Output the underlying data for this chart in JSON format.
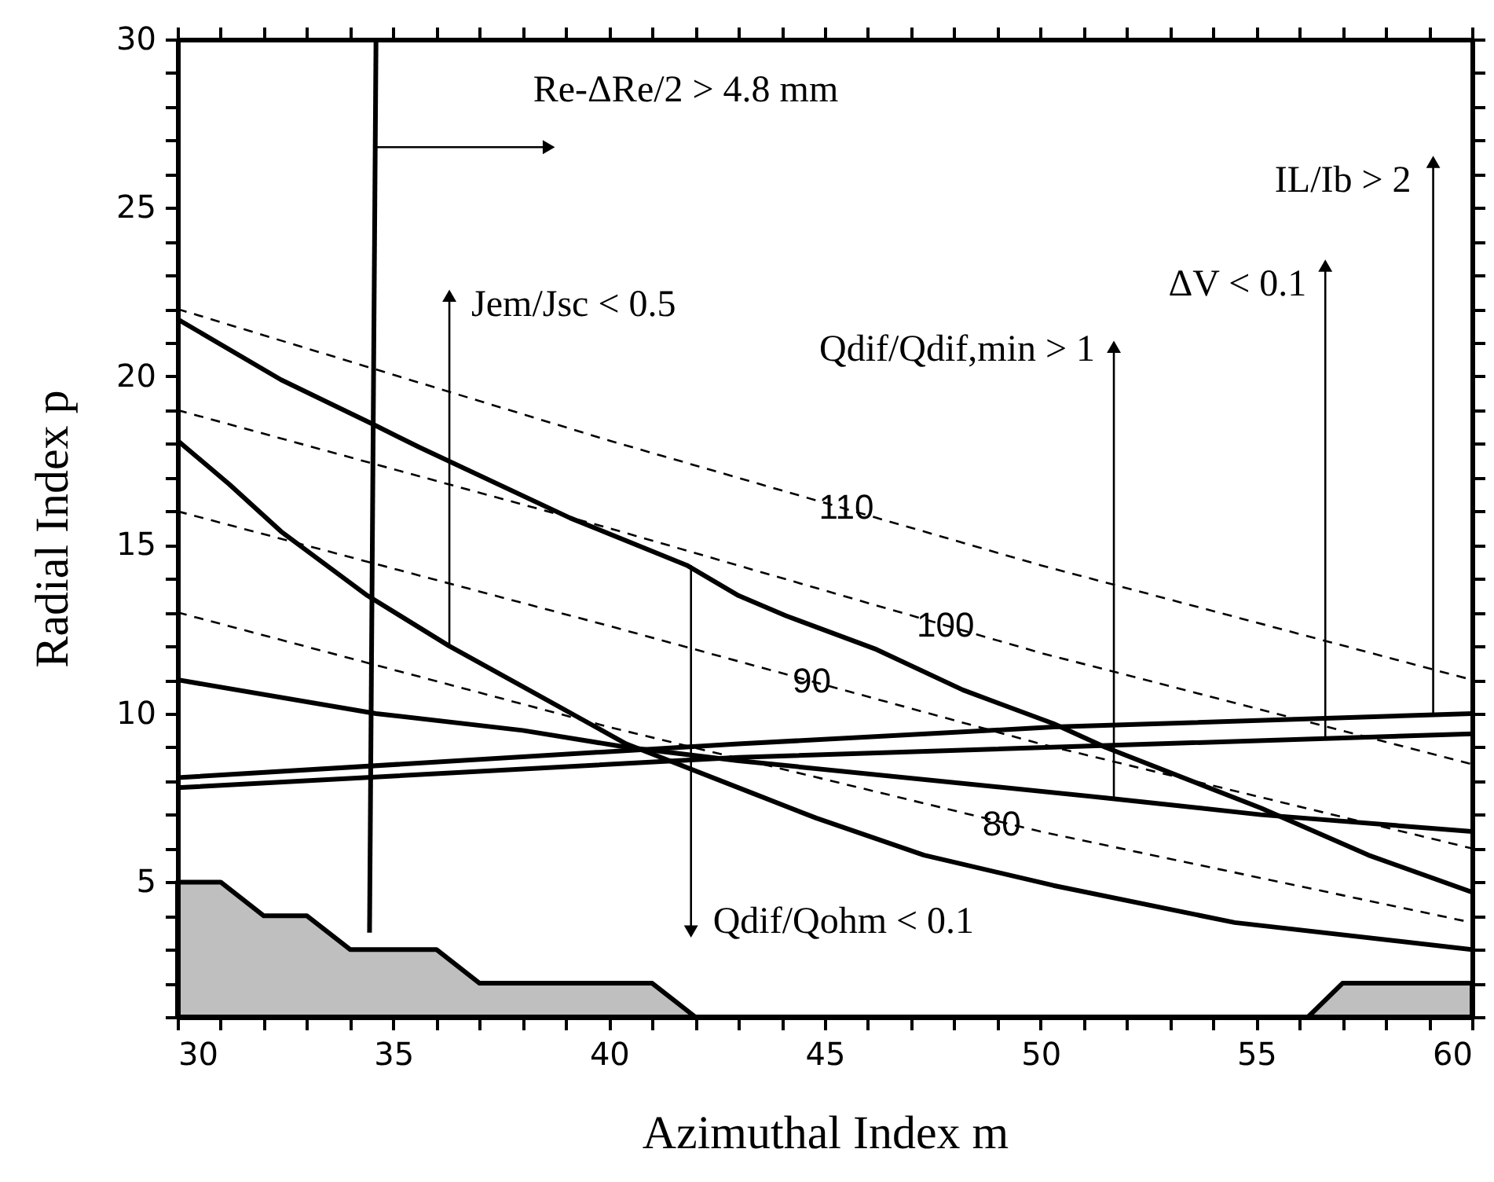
{
  "chart_data": {
    "type": "line",
    "xlabel": "Azimuthal Index  m",
    "ylabel": "Radial Index  p",
    "xlim": [
      30,
      60
    ],
    "ylim": [
      1,
      30
    ],
    "xticks": [
      30,
      {
        "value": 31,
        "label": null
      },
      {
        "value": 32,
        "label": null
      },
      {
        "value": 33,
        "label": null
      },
      {
        "value": 34,
        "label": null
      },
      35,
      {
        "value": 36,
        "label": null
      },
      {
        "value": 37,
        "label": null
      },
      {
        "value": 38,
        "label": null
      },
      {
        "value": 39,
        "label": null
      },
      40,
      {
        "value": 41,
        "label": null
      },
      {
        "value": 42,
        "label": null
      },
      {
        "value": 43,
        "label": null
      },
      {
        "value": 44,
        "label": null
      },
      45,
      {
        "value": 46,
        "label": null
      },
      {
        "value": 47,
        "label": null
      },
      {
        "value": 48,
        "label": null
      },
      {
        "value": 49,
        "label": null
      },
      50,
      {
        "value": 51,
        "label": null
      },
      {
        "value": 52,
        "label": null
      },
      {
        "value": 53,
        "label": null
      },
      {
        "value": 54,
        "label": null
      },
      55,
      {
        "value": 56,
        "label": null
      },
      {
        "value": 57,
        "label": null
      },
      {
        "value": 58,
        "label": null
      },
      {
        "value": 59,
        "label": null
      },
      60
    ],
    "yticks": [
      {
        "value": 1,
        "label": null
      },
      {
        "value": 2,
        "label": null
      },
      {
        "value": 3,
        "label": null
      },
      {
        "value": 4,
        "label": null
      },
      5,
      {
        "value": 6,
        "label": null
      },
      {
        "value": 7,
        "label": null
      },
      {
        "value": 8,
        "label": null
      },
      {
        "value": 9,
        "label": null
      },
      10,
      {
        "value": 11,
        "label": null
      },
      {
        "value": 12,
        "label": null
      },
      {
        "value": 13,
        "label": null
      },
      {
        "value": 14,
        "label": null
      },
      15,
      {
        "value": 16,
        "label": null
      },
      {
        "value": 17,
        "label": null
      },
      {
        "value": 18,
        "label": null
      },
      {
        "value": 19,
        "label": null
      },
      20,
      {
        "value": 21,
        "label": null
      },
      {
        "value": 22,
        "label": null
      },
      {
        "value": 23,
        "label": null
      },
      {
        "value": 24,
        "label": null
      },
      25,
      {
        "value": 26,
        "label": null
      },
      {
        "value": 27,
        "label": null
      },
      {
        "value": 28,
        "label": null
      },
      {
        "value": 29,
        "label": null
      },
      30
    ],
    "grid": false,
    "series": [
      {
        "type": "area",
        "color": "#000000",
        "x": [
          30,
          31,
          32,
          33,
          34,
          36,
          37,
          41,
          42,
          56.2,
          57,
          60
        ],
        "values": [
          5,
          5,
          4,
          4,
          3,
          3,
          2,
          2,
          1,
          1,
          2,
          2
        ]
      },
      {
        "color": "#000000",
        "line_style": "dashed",
        "x": [
          30,
          40,
          50,
          60
        ],
        "values": [
          22,
          18.1,
          14.4,
          11
        ]
      },
      {
        "color": "#000000",
        "line_style": "dashed",
        "x": [
          30,
          40,
          50,
          60
        ],
        "values": [
          19,
          15.5,
          11.8,
          8.5
        ]
      },
      {
        "color": "#000000",
        "line_style": "dashed",
        "x": [
          30,
          40,
          50,
          60
        ],
        "values": [
          16,
          12.6,
          9.1,
          6
        ]
      },
      {
        "color": "#000000",
        "line_style": "dashed",
        "x": [
          30,
          40,
          50,
          60
        ],
        "values": [
          13,
          9.6,
          6.5,
          3.8
        ]
      },
      {
        "color": "#000000",
        "line_style": "solid",
        "x": [
          30,
          32.4,
          34.5,
          35.6,
          39.1,
          41.8,
          43,
          44.1,
          46.2,
          48.2,
          50.3,
          51.5,
          55.1,
          57.6,
          60
        ],
        "values": [
          21.7,
          19.9,
          18.6,
          17.9,
          15.8,
          14.4,
          13.5,
          12.9,
          11.9,
          10.7,
          9.7,
          9,
          7.2,
          5.8,
          4.7
        ]
      },
      {
        "color": "#000000",
        "line_style": "solid",
        "x": [
          30,
          31.2,
          32.4,
          34.4,
          36.3,
          38,
          40.4,
          43.4,
          44.8,
          47.3,
          50.3,
          54.5,
          60
        ],
        "values": [
          18.1,
          16.8,
          15.4,
          13.5,
          12,
          10.8,
          9.1,
          7.6,
          6.9,
          5.8,
          4.9,
          3.8,
          3
        ]
      },
      {
        "color": "#000000",
        "line_style": "solid",
        "x": [
          30,
          34.6,
          38,
          40.4,
          43,
          51.5,
          55.1,
          60
        ],
        "values": [
          11,
          10,
          9.5,
          9,
          8.6,
          7.5,
          7,
          6.5
        ]
      },
      {
        "color": "#000000",
        "line_style": "solid",
        "x": [
          30,
          43,
          50.3,
          60
        ],
        "values": [
          8.1,
          9.1,
          9.6,
          10
        ]
      },
      {
        "color": "#000000",
        "line_style": "solid",
        "x": [
          30,
          43,
          60
        ],
        "values": [
          7.8,
          8.7,
          9.4
        ]
      },
      {
        "color": "#000000",
        "line_style": "solid",
        "x": [
          34.45,
          34.6
        ],
        "values": [
          3.5,
          30
        ]
      }
    ],
    "annotations": [
      {
        "text": "110",
        "x": 45.5,
        "y": 16.1
      },
      {
        "text": "100",
        "x": 47.8,
        "y": 12.6
      },
      {
        "text": "90",
        "x": 44.7,
        "y": 10.95
      },
      {
        "text": "80",
        "x": 49.1,
        "y": 6.7
      },
      {
        "text": "Re-ΔRe/2 > 4.8 mm",
        "x": 34.6,
        "y": 26.8
      },
      {
        "text": "Jem/Jsc < 0.5",
        "x": 36.3,
        "y": 12
      },
      {
        "text": "Qdif/Qohm < 0.1",
        "x": 41.9,
        "y": 14.4
      },
      {
        "text": "Qdif/Qdif,min > 1",
        "x": 51.7,
        "y": 7.5
      },
      {
        "text": "ΔV < 0.1",
        "x": 56.6,
        "y": 9.3
      },
      {
        "text": "IL/Ib > 2",
        "x": 59.1,
        "y": 10
      }
    ]
  }
}
